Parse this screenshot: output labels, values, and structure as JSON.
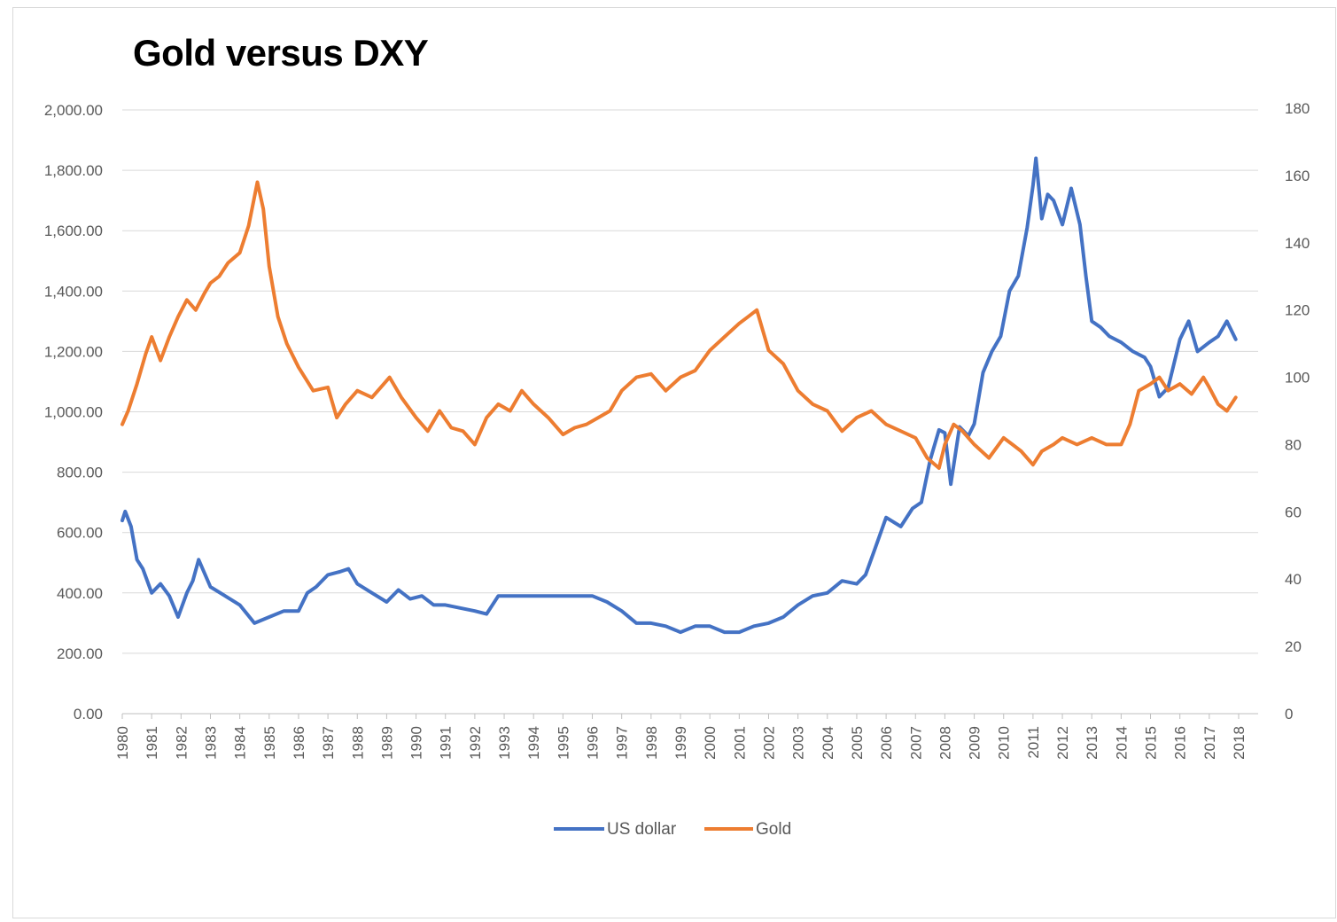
{
  "chart_data": {
    "type": "line",
    "title": "Gold versus DXY",
    "xlabel": "",
    "ylabel": "",
    "y_left_lim": [
      0,
      2000
    ],
    "y_right_lim": [
      0,
      180
    ],
    "y_left_ticks": [
      "0.00",
      "200.00",
      "400.00",
      "600.00",
      "800.00",
      "1,000.00",
      "1,200.00",
      "1,400.00",
      "1,600.00",
      "1,800.00",
      "2,000.00"
    ],
    "y_right_ticks": [
      "0",
      "20",
      "40",
      "60",
      "80",
      "100",
      "120",
      "140",
      "160",
      "180"
    ],
    "x_ticks": [
      "1980",
      "1981",
      "1982",
      "1983",
      "1984",
      "1985",
      "1986",
      "1987",
      "1988",
      "1989",
      "1990",
      "1991",
      "1992",
      "1993",
      "1994",
      "1995",
      "1996",
      "1997",
      "1998",
      "1999",
      "2000",
      "2001",
      "2002",
      "2003",
      "2004",
      "2005",
      "2006",
      "2007",
      "2008",
      "2009",
      "2010",
      "2011",
      "2012",
      "2013",
      "2014",
      "2015",
      "2016",
      "2017",
      "2018"
    ],
    "grid": true,
    "legend_position": "bottom",
    "colors": {
      "us_dollar": "#4472c4",
      "gold": "#ed7d31",
      "grid": "#d9d9d9",
      "axis": "#bfbfbf"
    },
    "series": [
      {
        "name": "US dollar",
        "axis": "left",
        "color": "#4472c4",
        "x": [
          1980.0,
          1980.1,
          1980.3,
          1980.5,
          1980.7,
          1981.0,
          1981.3,
          1981.6,
          1981.9,
          1982.2,
          1982.4,
          1982.6,
          1983.0,
          1983.5,
          1984.0,
          1984.5,
          1985.0,
          1985.5,
          1986.0,
          1986.3,
          1986.6,
          1987.0,
          1987.4,
          1987.7,
          1988.0,
          1988.5,
          1989.0,
          1989.4,
          1989.8,
          1990.2,
          1990.6,
          1991.0,
          1991.5,
          1992.0,
          1992.4,
          1992.8,
          1993.0,
          1993.5,
          1994.0,
          1994.5,
          1995.0,
          1995.5,
          1996.0,
          1996.5,
          1997.0,
          1997.5,
          1998.0,
          1998.5,
          1999.0,
          1999.5,
          2000.0,
          2000.5,
          2001.0,
          2001.5,
          2002.0,
          2002.5,
          2003.0,
          2003.5,
          2004.0,
          2004.5,
          2005.0,
          2005.3,
          2005.6,
          2006.0,
          2006.5,
          2006.9,
          2007.2,
          2007.5,
          2007.8,
          2008.0,
          2008.2,
          2008.5,
          2008.8,
          2009.0,
          2009.3,
          2009.6,
          2009.9,
          2010.2,
          2010.5,
          2010.8,
          2011.0,
          2011.1,
          2011.3,
          2011.5,
          2011.7,
          2012.0,
          2012.3,
          2012.6,
          2012.8,
          2013.0,
          2013.3,
          2013.6,
          2014.0,
          2014.4,
          2014.8,
          2015.0,
          2015.3,
          2015.6,
          2016.0,
          2016.3,
          2016.6,
          2017.0,
          2017.3,
          2017.6,
          2017.9
        ],
        "values": [
          640,
          670,
          620,
          510,
          480,
          400,
          430,
          390,
          320,
          400,
          440,
          510,
          420,
          390,
          360,
          300,
          320,
          340,
          340,
          400,
          420,
          460,
          470,
          480,
          430,
          400,
          370,
          410,
          380,
          390,
          360,
          360,
          350,
          340,
          330,
          390,
          390,
          390,
          390,
          390,
          390,
          390,
          390,
          370,
          340,
          300,
          300,
          290,
          270,
          290,
          290,
          270,
          270,
          290,
          300,
          320,
          360,
          390,
          400,
          440,
          430,
          460,
          540,
          650,
          620,
          680,
          700,
          840,
          940,
          930,
          760,
          950,
          920,
          960,
          1130,
          1200,
          1250,
          1400,
          1450,
          1610,
          1750,
          1840,
          1640,
          1720,
          1700,
          1620,
          1740,
          1620,
          1450,
          1300,
          1280,
          1250,
          1230,
          1200,
          1180,
          1150,
          1050,
          1080,
          1240,
          1300,
          1200,
          1230,
          1250,
          1300,
          1240
        ]
      },
      {
        "name": "Gold",
        "axis": "right",
        "color": "#ed7d31",
        "x": [
          1980.0,
          1980.2,
          1980.5,
          1980.8,
          1981.0,
          1981.3,
          1981.6,
          1981.9,
          1982.2,
          1982.5,
          1982.8,
          1983.0,
          1983.3,
          1983.6,
          1984.0,
          1984.3,
          1984.6,
          1984.8,
          1985.0,
          1985.3,
          1985.6,
          1986.0,
          1986.5,
          1987.0,
          1987.3,
          1987.6,
          1988.0,
          1988.5,
          1988.8,
          1989.1,
          1989.5,
          1990.0,
          1990.4,
          1990.8,
          1991.2,
          1991.6,
          1992.0,
          1992.4,
          1992.8,
          1993.2,
          1993.6,
          1994.0,
          1994.5,
          1995.0,
          1995.4,
          1995.8,
          1996.2,
          1996.6,
          1997.0,
          1997.5,
          1998.0,
          1998.5,
          1999.0,
          1999.5,
          2000.0,
          2000.5,
          2001.0,
          2001.3,
          2001.6,
          2002.0,
          2002.5,
          2003.0,
          2003.5,
          2004.0,
          2004.5,
          2005.0,
          2005.5,
          2006.0,
          2006.5,
          2007.0,
          2007.4,
          2007.8,
          2008.0,
          2008.3,
          2008.6,
          2009.0,
          2009.5,
          2010.0,
          2010.3,
          2010.6,
          2011.0,
          2011.3,
          2011.7,
          2012.0,
          2012.5,
          2013.0,
          2013.5,
          2014.0,
          2014.3,
          2014.6,
          2015.0,
          2015.3,
          2015.6,
          2016.0,
          2016.4,
          2016.8,
          2017.0,
          2017.3,
          2017.6,
          2017.9
        ],
        "values": [
          86,
          90,
          98,
          107,
          112,
          105,
          112,
          118,
          123,
          120,
          125,
          128,
          130,
          134,
          137,
          145,
          158,
          150,
          133,
          118,
          110,
          103,
          96,
          97,
          88,
          92,
          96,
          94,
          97,
          100,
          94,
          88,
          84,
          90,
          85,
          84,
          80,
          88,
          92,
          90,
          96,
          92,
          88,
          83,
          85,
          86,
          88,
          90,
          96,
          100,
          101,
          96,
          100,
          102,
          108,
          112,
          116,
          118,
          120,
          108,
          104,
          96,
          92,
          90,
          84,
          88,
          90,
          86,
          84,
          82,
          76,
          73,
          80,
          86,
          84,
          80,
          76,
          82,
          80,
          78,
          74,
          78,
          80,
          82,
          80,
          82,
          80,
          80,
          86,
          96,
          98,
          100,
          96,
          98,
          95,
          100,
          97,
          92,
          90,
          94
        ]
      }
    ]
  }
}
